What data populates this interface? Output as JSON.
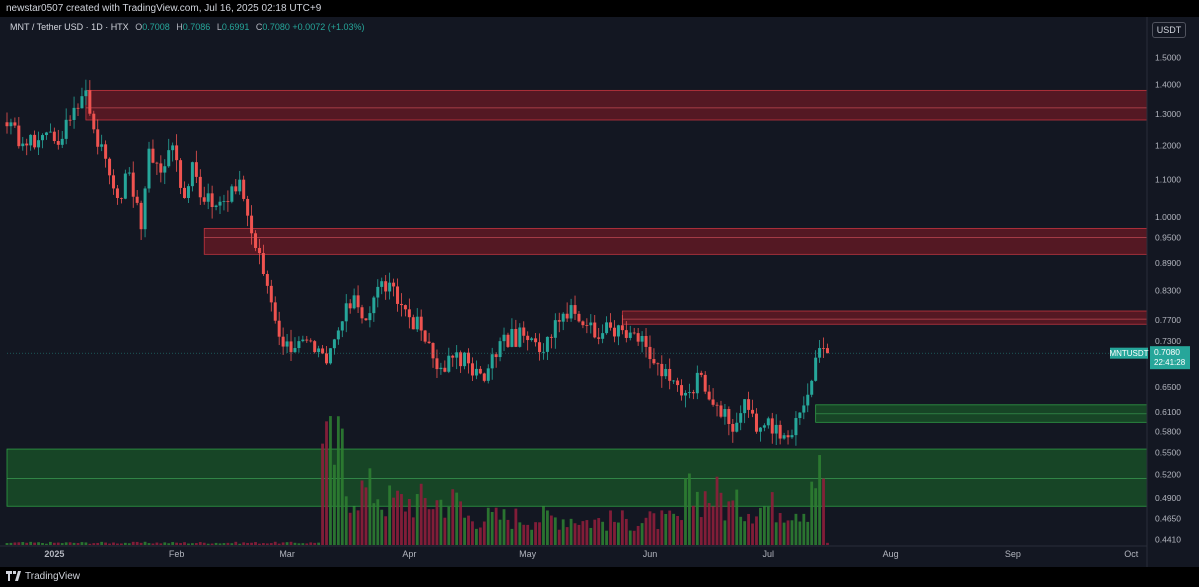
{
  "header": {
    "author_line": "newstar0507 created with TradingView.com, Jul 16, 2025 02:18 UTC+9"
  },
  "legend": {
    "symbol": "MNT / Tether USD · 1D · HTX",
    "open_label": "O",
    "open": "0.7008",
    "high_label": "H",
    "high": "0.7086",
    "low_label": "L",
    "low": "0.6991",
    "close_label": "C",
    "close": "0.7080",
    "change": "+0.0072 (+1.03%)"
  },
  "currency_badge": "USDT",
  "footer": {
    "brand": "TradingView"
  },
  "colors": {
    "background": "#131722",
    "up": "#26a69a",
    "down": "#ef5350",
    "resistance_zone": "#8b1a24",
    "support_zone": "#1b6b2a",
    "price_label": "#26a69a"
  },
  "chart_data": {
    "type": "candlestick",
    "symbol": "MNTUSDT",
    "timeframe": "1D",
    "x_axis": {
      "tick_labels": [
        "2025",
        "Feb",
        "Mar",
        "Apr",
        "May",
        "Jun",
        "Jul",
        "Aug",
        "Sep",
        "Oct"
      ],
      "tick_dates": [
        "2025-01-01",
        "2025-02-01",
        "2025-03-01",
        "2025-04-01",
        "2025-05-01",
        "2025-06-01",
        "2025-07-01",
        "2025-08-01",
        "2025-09-01",
        "2025-10-01"
      ],
      "range": [
        "2024-12-20",
        "2025-10-05"
      ]
    },
    "y_axis": {
      "scale": "log",
      "range": [
        0.435,
        1.65
      ],
      "tick_labels": [
        "1.5000",
        "1.4000",
        "1.3000",
        "1.2000",
        "1.1000",
        "1.0000",
        "0.9500",
        "0.8900",
        "0.8300",
        "0.7700",
        "0.7300",
        "0.6500",
        "0.6100",
        "0.5800",
        "0.5500",
        "0.5200",
        "0.4900",
        "0.4650",
        "0.4410"
      ],
      "tick_values": [
        1.5,
        1.4,
        1.3,
        1.2,
        1.1,
        1.0,
        0.95,
        0.89,
        0.83,
        0.77,
        0.73,
        0.65,
        0.61,
        0.58,
        0.55,
        0.52,
        0.49,
        0.465,
        0.441
      ]
    },
    "last_price": {
      "symbol_label": "MNTUSDT",
      "price": "0.7080",
      "countdown": "22:41:28",
      "value": 0.708
    },
    "zones": [
      {
        "kind": "resistance",
        "low": 1.28,
        "mid": 1.32,
        "high": 1.38,
        "start": "2025-01-09"
      },
      {
        "kind": "resistance",
        "low": 0.91,
        "mid": 0.95,
        "high": 0.972,
        "start": "2025-02-08"
      },
      {
        "kind": "resistance",
        "low": 0.762,
        "mid": 0.772,
        "high": 0.788,
        "start": "2025-05-25"
      },
      {
        "kind": "support",
        "low": 0.594,
        "mid": 0.607,
        "high": 0.621,
        "start": "2025-07-13"
      },
      {
        "kind": "support",
        "low": 0.48,
        "mid": 0.515,
        "high": 0.555,
        "start": "2024-12-20"
      }
    ],
    "close_series": {
      "start": "2024-12-20",
      "step_days": 1,
      "anchors": [
        [
          "2024-12-20",
          1.26
        ],
        [
          "2024-12-25",
          1.2
        ],
        [
          "2024-12-30",
          1.24
        ],
        [
          "2025-01-03",
          1.22
        ],
        [
          "2025-01-06",
          1.32
        ],
        [
          "2025-01-09",
          1.38
        ],
        [
          "2025-01-11",
          1.25
        ],
        [
          "2025-01-14",
          1.16
        ],
        [
          "2025-01-17",
          1.05
        ],
        [
          "2025-01-20",
          1.12
        ],
        [
          "2025-01-23",
          0.97
        ],
        [
          "2025-01-25",
          1.19
        ],
        [
          "2025-01-28",
          1.12
        ],
        [
          "2025-01-31",
          1.2
        ],
        [
          "2025-02-03",
          1.05
        ],
        [
          "2025-02-05",
          1.15
        ],
        [
          "2025-02-08",
          1.04
        ],
        [
          "2025-02-11",
          1.03
        ],
        [
          "2025-02-14",
          1.04
        ],
        [
          "2025-02-17",
          1.1
        ],
        [
          "2025-02-20",
          0.96
        ],
        [
          "2025-02-24",
          0.84
        ],
        [
          "2025-02-28",
          0.72
        ],
        [
          "2025-03-04",
          0.73
        ],
        [
          "2025-03-08",
          0.71
        ],
        [
          "2025-03-11",
          0.69
        ],
        [
          "2025-03-14",
          0.75
        ],
        [
          "2025-03-18",
          0.82
        ],
        [
          "2025-03-21",
          0.77
        ],
        [
          "2025-03-25",
          0.85
        ],
        [
          "2025-03-30",
          0.8
        ],
        [
          "2025-04-04",
          0.75
        ],
        [
          "2025-04-08",
          0.68
        ],
        [
          "2025-04-12",
          0.7
        ],
        [
          "2025-04-16",
          0.69
        ],
        [
          "2025-04-20",
          0.66
        ],
        [
          "2025-04-24",
          0.73
        ],
        [
          "2025-04-30",
          0.74
        ],
        [
          "2025-05-04",
          0.71
        ],
        [
          "2025-05-08",
          0.77
        ],
        [
          "2025-05-12",
          0.8
        ],
        [
          "2025-05-16",
          0.76
        ],
        [
          "2025-05-20",
          0.745
        ],
        [
          "2025-05-24",
          0.76
        ],
        [
          "2025-05-28",
          0.745
        ],
        [
          "2025-06-02",
          0.69
        ],
        [
          "2025-06-06",
          0.66
        ],
        [
          "2025-06-10",
          0.64
        ],
        [
          "2025-06-14",
          0.67
        ],
        [
          "2025-06-18",
          0.62
        ],
        [
          "2025-06-22",
          0.58
        ],
        [
          "2025-06-25",
          0.63
        ],
        [
          "2025-06-28",
          0.58
        ],
        [
          "2025-07-01",
          0.6
        ],
        [
          "2025-07-04",
          0.57
        ],
        [
          "2025-07-07",
          0.575
        ],
        [
          "2025-07-10",
          0.62
        ],
        [
          "2025-07-12",
          0.66
        ],
        [
          "2025-07-13",
          0.7
        ],
        [
          "2025-07-16",
          0.708
        ]
      ]
    },
    "volume_profile": {
      "description_values": "relative volume 0-1 per day",
      "segments": [
        [
          "2024-12-20",
          0.02
        ],
        [
          "2025-03-09",
          0.03
        ],
        [
          "2025-03-10",
          0.85
        ],
        [
          "2025-03-16",
          0.5
        ],
        [
          "2025-03-25",
          0.4
        ],
        [
          "2025-04-15",
          0.25
        ],
        [
          "2025-05-15",
          0.22
        ],
        [
          "2025-06-10",
          0.45
        ],
        [
          "2025-06-20",
          0.35
        ],
        [
          "2025-07-12",
          0.65
        ],
        [
          "2025-07-16",
          0.02
        ]
      ]
    }
  }
}
